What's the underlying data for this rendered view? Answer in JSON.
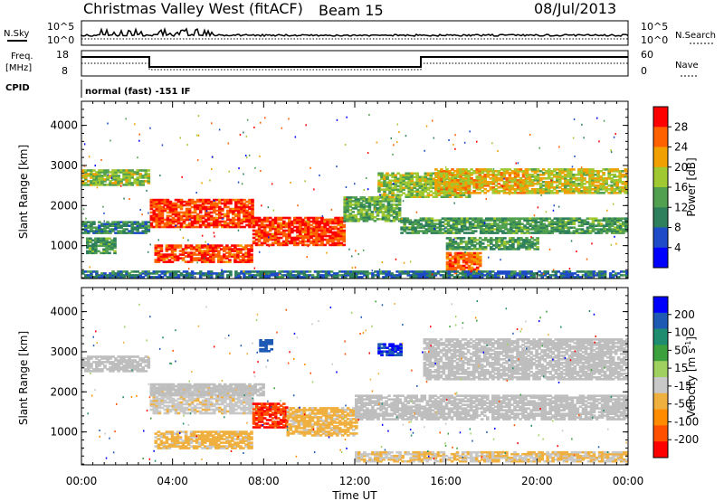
{
  "header": {
    "title": "Christmas Valley West (fitACF)",
    "beam": "Beam 15",
    "date": "08/Jul/2013"
  },
  "sky_panel": {
    "label": "N.Sky",
    "right_label": "N.Search",
    "left_ticks": [
      "10^5",
      "10^0"
    ],
    "right_ticks": [
      "10^5",
      "10^0"
    ]
  },
  "freq_panel": {
    "label_line1": "Freq.",
    "label_line2": "[MHz]",
    "right_label": "Nave",
    "left_ticks": [
      "18",
      "8"
    ],
    "right_ticks": [
      "60",
      "0"
    ]
  },
  "cpid": {
    "label": "CPID",
    "text": "normal (fast) -151 IF"
  },
  "colors": {
    "power_scale": [
      "#0000ff",
      "#1e4cc8",
      "#2e7f5c",
      "#50a050",
      "#a0c830",
      "#f0a000",
      "#ff6000",
      "#ff0000"
    ],
    "velocity_scale": [
      "#ff0000",
      "#ff5000",
      "#ff8c00",
      "#f0b040",
      "#c8c8c8",
      "#a0d060",
      "#3ca03c",
      "#1e8c6e",
      "#1e5ab4",
      "#0000ff"
    ],
    "ground_scatter": "#bebebe"
  },
  "chart_data": [
    {
      "type": "heatmap",
      "name": "power",
      "x_label": "Time UT",
      "y_label": "Slant Range [km]",
      "x_ticks": [
        "00:00",
        "04:00",
        "08:00",
        "12:00",
        "16:00",
        "20:00",
        "00:00"
      ],
      "x_range_hours": [
        0,
        24
      ],
      "y_ticks": [
        1000,
        2000,
        3000,
        4000
      ],
      "y_range_km": [
        180,
        4600
      ],
      "colorbar_label": "Power [dB]",
      "colorbar_ticks": [
        4,
        8,
        12,
        16,
        20,
        24,
        28
      ],
      "colorbar_range": [
        0,
        30
      ],
      "regions": [
        {
          "t0": 3.0,
          "t1": 7.5,
          "r0": 1450,
          "r1": 2150,
          "value": 26
        },
        {
          "t0": 3.2,
          "t1": 7.5,
          "r0": 580,
          "r1": 1000,
          "value": 26
        },
        {
          "t0": 7.5,
          "t1": 11.5,
          "r0": 1000,
          "r1": 1700,
          "value": 26
        },
        {
          "t0": 0.0,
          "t1": 3.0,
          "r0": 2500,
          "r1": 2900,
          "value": 16
        },
        {
          "t0": 0.2,
          "t1": 1.5,
          "r0": 800,
          "r1": 1200,
          "value": 12
        },
        {
          "t0": 0.0,
          "t1": 3.0,
          "r0": 1300,
          "r1": 1600,
          "value": 10
        },
        {
          "t0": 11.5,
          "t1": 14.0,
          "r0": 1600,
          "r1": 2200,
          "value": 14
        },
        {
          "t0": 13.0,
          "t1": 17.0,
          "r0": 2200,
          "r1": 2800,
          "value": 16
        },
        {
          "t0": 15.5,
          "t1": 19.5,
          "r0": 2300,
          "r1": 2900,
          "value": 20
        },
        {
          "t0": 19.5,
          "t1": 24.0,
          "r0": 2300,
          "r1": 2900,
          "value": 18
        },
        {
          "t0": 14.0,
          "t1": 24.0,
          "r0": 1300,
          "r1": 1700,
          "value": 12
        },
        {
          "t0": 16.0,
          "t1": 20.0,
          "r0": 900,
          "r1": 1200,
          "value": 12
        },
        {
          "t0": 16.0,
          "t1": 17.5,
          "r0": 300,
          "r1": 800,
          "value": 24
        },
        {
          "t0": 0.0,
          "t1": 24.0,
          "r0": 200,
          "r1": 350,
          "value": 8
        }
      ]
    },
    {
      "type": "heatmap",
      "name": "velocity",
      "x_label": "Time UT",
      "y_label": "Slant Range [km]",
      "x_ticks": [
        "00:00",
        "04:00",
        "08:00",
        "12:00",
        "16:00",
        "20:00",
        "00:00"
      ],
      "x_range_hours": [
        0,
        24
      ],
      "y_ticks": [
        1000,
        2000,
        3000,
        4000
      ],
      "y_range_km": [
        180,
        4600
      ],
      "colorbar_label": "Velocity [m s^-1]",
      "colorbar_ticks": [
        200,
        100,
        50,
        15,
        -15,
        -50,
        -100,
        -200
      ],
      "colorbar_range": [
        -250,
        250
      ],
      "regions": [
        {
          "t0": 3.0,
          "t1": 7.5,
          "r0": 1450,
          "r1": 2150,
          "value": -40
        },
        {
          "t0": 3.2,
          "t1": 7.5,
          "r0": 580,
          "r1": 1000,
          "value": -60
        },
        {
          "t0": 7.5,
          "t1": 9.0,
          "r0": 1100,
          "r1": 1700,
          "value": -200
        },
        {
          "t0": 9.0,
          "t1": 12.0,
          "r0": 900,
          "r1": 1600,
          "value": -60
        },
        {
          "t0": 13.0,
          "t1": 14.0,
          "r0": 2900,
          "r1": 3200,
          "value": 200
        },
        {
          "t0": 7.8,
          "t1": 8.3,
          "r0": 3000,
          "r1": 3300,
          "value": 180
        },
        {
          "t0": 12.0,
          "t1": 24.0,
          "r0": 250,
          "r1": 500,
          "value": -50
        },
        {
          "t0": 0.0,
          "t1": 3.0,
          "r0": 2500,
          "r1": 2900,
          "value": 0
        },
        {
          "t0": 15.0,
          "t1": 24.0,
          "r0": 2300,
          "r1": 3300,
          "value": 0
        },
        {
          "t0": 12.0,
          "t1": 24.0,
          "r0": 1300,
          "r1": 1900,
          "value": 0
        },
        {
          "t0": 3.0,
          "t1": 8.0,
          "r0": 1900,
          "r1": 2200,
          "value": 0
        }
      ]
    }
  ]
}
